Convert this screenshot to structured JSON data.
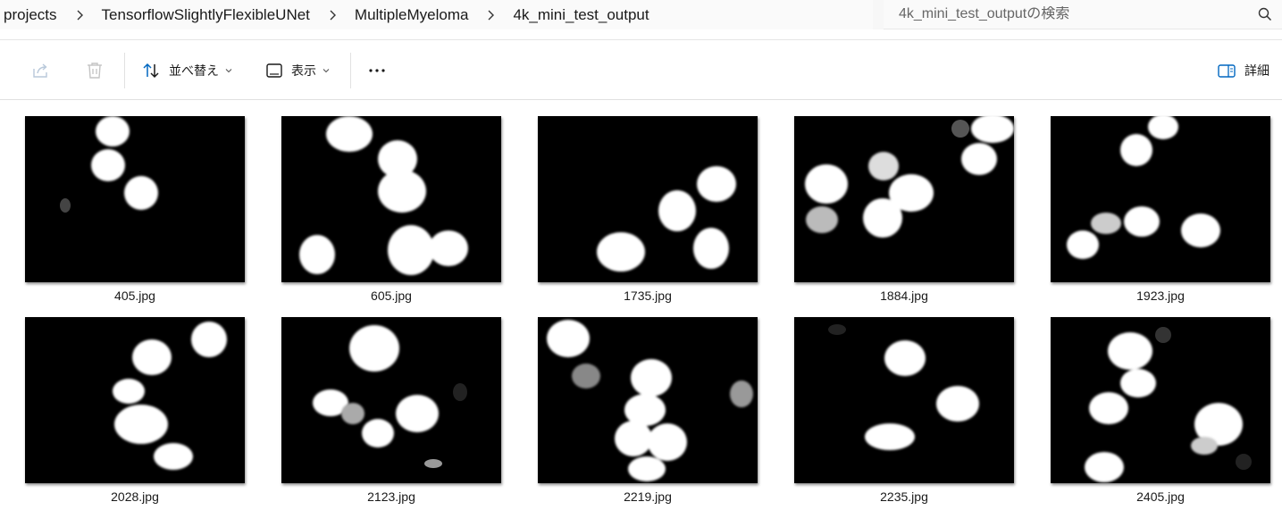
{
  "breadcrumb": {
    "items": [
      "projects",
      "TensorflowSlightlyFlexibleUNet",
      "MultipleMyeloma",
      "4k_mini_test_output"
    ]
  },
  "search": {
    "placeholder": "4k_mini_test_outputの検索"
  },
  "toolbar": {
    "sort_label": "並べ替え",
    "view_label": "表示",
    "details_label": "詳細"
  },
  "files": [
    {
      "name": "405.jpg"
    },
    {
      "name": "605.jpg"
    },
    {
      "name": "1735.jpg"
    },
    {
      "name": "1884.jpg"
    },
    {
      "name": "1923.jpg"
    },
    {
      "name": "2028.jpg"
    },
    {
      "name": "2123.jpg"
    },
    {
      "name": "2219.jpg"
    },
    {
      "name": "2235.jpg"
    },
    {
      "name": "2405.jpg"
    }
  ],
  "colors": {
    "accent": "#0067c0",
    "thumbnail_background": "#000000",
    "mask_foreground": "#ffffff"
  }
}
